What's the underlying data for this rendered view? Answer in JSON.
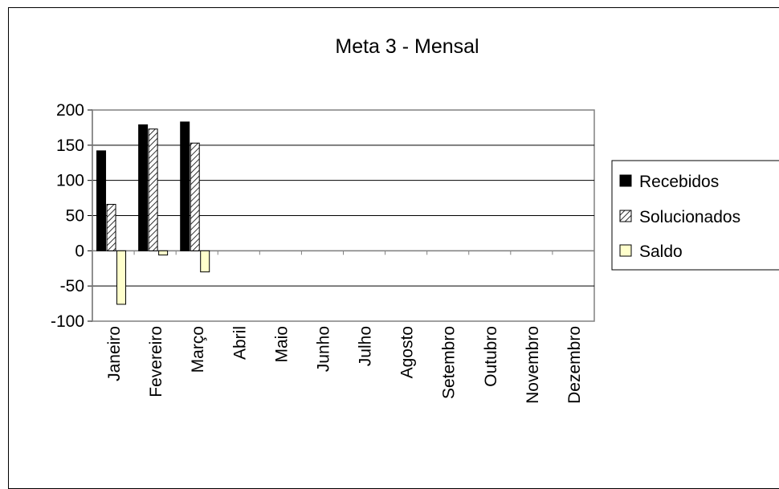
{
  "chart_data": {
    "type": "bar",
    "title": "Meta 3 - Mensal",
    "xlabel": "",
    "ylabel": "",
    "categories": [
      "Janeiro",
      "Fevereiro",
      "Março",
      "Abril",
      "Maio",
      "Junho",
      "Julho",
      "Agosto",
      "Setembro",
      "Outubro",
      "Novembro",
      "Dezembro"
    ],
    "series": [
      {
        "name": "Recebidos",
        "values": [
          142,
          179,
          183,
          null,
          null,
          null,
          null,
          null,
          null,
          null,
          null,
          null
        ],
        "color": "#000000",
        "pattern": "solid"
      },
      {
        "name": "Solucionados",
        "values": [
          66,
          173,
          153,
          null,
          null,
          null,
          null,
          null,
          null,
          null,
          null,
          null
        ],
        "color": "#ffffff",
        "pattern": "diagonal-hatch"
      },
      {
        "name": "Saldo",
        "values": [
          -76,
          -6,
          -30,
          null,
          null,
          null,
          null,
          null,
          null,
          null,
          null,
          null
        ],
        "color": "#ffffcc",
        "pattern": "solid"
      }
    ],
    "ylim": [
      -100,
      200
    ],
    "yticks": [
      200,
      150,
      100,
      50,
      0,
      -50,
      -100
    ],
    "grid": true,
    "legend": "right"
  }
}
